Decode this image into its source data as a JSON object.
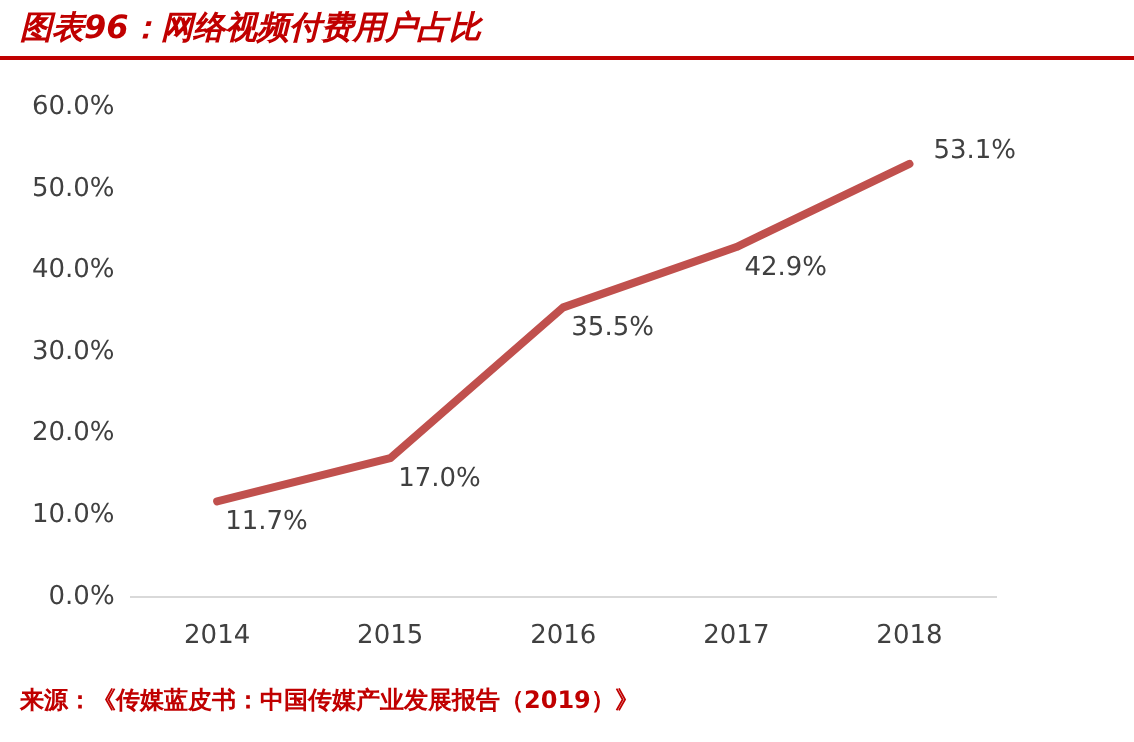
{
  "chart_data": {
    "type": "line",
    "title": "图表96：网络视频付费用户占比",
    "categories": [
      "2014",
      "2015",
      "2016",
      "2017",
      "2018"
    ],
    "series": [
      {
        "color": "#c0504d",
        "values": [
          11.7,
          17.0,
          35.5,
          42.9,
          53.1
        ],
        "value_labels": [
          "11.7%",
          "17.0%",
          "35.5%",
          "42.9%",
          "53.1%"
        ]
      }
    ],
    "ylim": [
      0,
      60
    ],
    "yticks": [
      {
        "value": 0,
        "label": "0.0%"
      },
      {
        "value": 10,
        "label": "10.0%"
      },
      {
        "value": 20,
        "label": "20.0%"
      },
      {
        "value": 30,
        "label": "30.0%"
      },
      {
        "value": 40,
        "label": "40.0%"
      },
      {
        "value": 50,
        "label": "50.0%"
      },
      {
        "value": 60,
        "label": "60.0%"
      }
    ],
    "grid": false,
    "legend": false,
    "marker": "none",
    "line_style": "solid",
    "annotations": [
      "来源：《传媒蓝皮书：中国传媒产业发展报告（2019）》"
    ]
  }
}
